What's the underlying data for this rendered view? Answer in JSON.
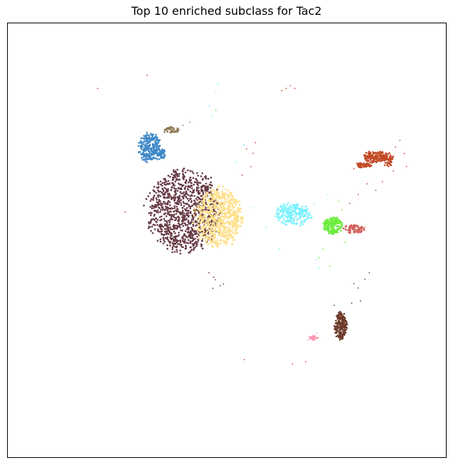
{
  "chart_data": {
    "type": "scatter",
    "title": "Top 10 enriched subclass for Tac2",
    "xlabel": "",
    "ylabel": "",
    "xlim": [
      0,
      100
    ],
    "ylim": [
      0,
      100
    ],
    "show_ticks": false,
    "grid": false,
    "legend": "none",
    "clusters": [
      {
        "color": "#673b46",
        "blobs": [
          {
            "cx": 40.3,
            "cy": 56.8,
            "rx": 8.2,
            "ry": 9.0,
            "n": 1100
          }
        ],
        "scatter": [
          [
            45.9,
            42.5
          ],
          [
            47.4,
            40.9
          ],
          [
            46.8,
            38.9
          ],
          [
            49.2,
            39.9
          ]
        ]
      },
      {
        "color": "#ffe08a",
        "blobs": [
          {
            "cx": 48.1,
            "cy": 55.2,
            "rx": 5.3,
            "ry": 6.6,
            "n": 700
          }
        ],
        "scatter": []
      },
      {
        "color": "#3f89c8",
        "blobs": [
          {
            "cx": 32.4,
            "cy": 71.3,
            "rx": 2.4,
            "ry": 3.2,
            "n": 260
          },
          {
            "cx": 35.2,
            "cy": 69.8,
            "rx": 0.9,
            "ry": 1.2,
            "n": 40
          }
        ],
        "scatter": []
      },
      {
        "color": "#8f7a55",
        "blobs": [
          {
            "cx": 37.3,
            "cy": 75.4,
            "rx": 1.8,
            "ry": 0.7,
            "n": 40
          }
        ],
        "scatter": [
          [
            40.0,
            76.5
          ],
          [
            41.5,
            77.2
          ]
        ]
      },
      {
        "color": "#7af2ff",
        "blobs": [
          {
            "cx": 65.2,
            "cy": 56.0,
            "rx": 4.0,
            "ry": 2.5,
            "n": 220
          }
        ],
        "scatter": [
          [
            59.0,
            53.0
          ],
          [
            61.0,
            55.5
          ],
          [
            70.0,
            58.5
          ],
          [
            73.0,
            60.5
          ],
          [
            69.0,
            56.5
          ],
          [
            56.0,
            57.5
          ],
          [
            46.0,
            81.0
          ],
          [
            46.6,
            78.5
          ],
          [
            47.5,
            84.0
          ],
          [
            48.0,
            86.0
          ],
          [
            52.0,
            68.0
          ],
          [
            70.5,
            45.5
          ],
          [
            71.0,
            43.5
          ],
          [
            62.0,
            48.0
          ],
          [
            54.0,
            72.0
          ]
        ]
      },
      {
        "color": "#6aec3a",
        "blobs": [
          {
            "cx": 74.2,
            "cy": 53.4,
            "rx": 2.1,
            "ry": 1.9,
            "n": 170
          }
        ],
        "scatter": [
          [
            75.5,
            59.0
          ],
          [
            76.2,
            57.0
          ],
          [
            72.0,
            48.0
          ],
          [
            71.0,
            46.0
          ],
          [
            73.5,
            44.0
          ],
          [
            77.0,
            49.5
          ],
          [
            47.5,
            80.0
          ]
        ]
      },
      {
        "color": "#d25e58",
        "blobs": [
          {
            "cx": 79.0,
            "cy": 52.6,
            "rx": 2.3,
            "ry": 0.9,
            "n": 70
          }
        ],
        "scatter": [
          [
            81.5,
            53.0
          ]
        ]
      },
      {
        "color": "#c24b26",
        "blobs": [
          {
            "cx": 83.8,
            "cy": 69.2,
            "rx": 2.6,
            "ry": 1.3,
            "n": 150
          },
          {
            "cx": 86.8,
            "cy": 68.6,
            "rx": 1.1,
            "ry": 1.6,
            "n": 60
          },
          {
            "cx": 81.3,
            "cy": 67.3,
            "rx": 1.8,
            "ry": 0.6,
            "n": 50
          }
        ],
        "scatter": [
          [
            79.0,
            66.5
          ],
          [
            82.0,
            63.0
          ],
          [
            84.0,
            61.5
          ],
          [
            85.5,
            63.5
          ],
          [
            88.5,
            71.5
          ],
          [
            90.5,
            70.0
          ],
          [
            91.0,
            67.0
          ],
          [
            88.0,
            66.0
          ],
          [
            89.5,
            73.0
          ],
          [
            80.0,
            60.5
          ],
          [
            78.0,
            58.5
          ],
          [
            63.5,
            85.0
          ],
          [
            64.5,
            85.6
          ],
          [
            65.5,
            85.0
          ],
          [
            62.5,
            84.5
          ],
          [
            54.5,
            71.0
          ],
          [
            56.0,
            70.0
          ],
          [
            53.5,
            65.0
          ],
          [
            55.5,
            67.0
          ],
          [
            56.5,
            72.5
          ],
          [
            26.8,
            56.5
          ],
          [
            20.5,
            85.0
          ],
          [
            31.8,
            88.0
          ],
          [
            54.0,
            22.5
          ],
          [
            65.0,
            21.5
          ],
          [
            68.0,
            22.0
          ]
        ]
      },
      {
        "color": "#6c3a2a",
        "blobs": [
          {
            "cx": 76.0,
            "cy": 30.2,
            "rx": 1.4,
            "ry": 3.0,
            "n": 200
          }
        ],
        "scatter": [
          [
            78.5,
            35.5
          ],
          [
            80.0,
            39.0
          ],
          [
            81.5,
            41.0
          ],
          [
            82.5,
            42.5
          ],
          [
            80.5,
            36.0
          ],
          [
            79.0,
            40.0
          ],
          [
            74.5,
            35.0
          ],
          [
            47.0,
            41.5
          ],
          [
            48.5,
            39.5
          ]
        ]
      },
      {
        "color": "#ff96b0",
        "blobs": [
          {
            "cx": 69.8,
            "cy": 27.5,
            "rx": 0.9,
            "ry": 0.5,
            "n": 30
          }
        ],
        "scatter": [
          [
            68.5,
            27.0
          ],
          [
            70.5,
            28.5
          ]
        ]
      }
    ]
  }
}
